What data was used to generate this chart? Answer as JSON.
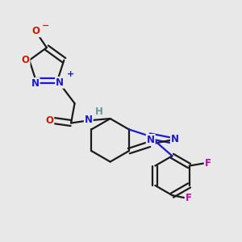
{
  "bg_color": "#e8e8e8",
  "bond_color": "#1a1a1a",
  "N_color": "#1a1acc",
  "O_color": "#cc1a00",
  "F_color": "#cc00aa",
  "H_color": "#669999",
  "line_width": 1.6,
  "figsize": [
    3.0,
    3.0
  ],
  "dpi": 100,
  "xlim": [
    0,
    1
  ],
  "ylim": [
    0,
    1
  ]
}
